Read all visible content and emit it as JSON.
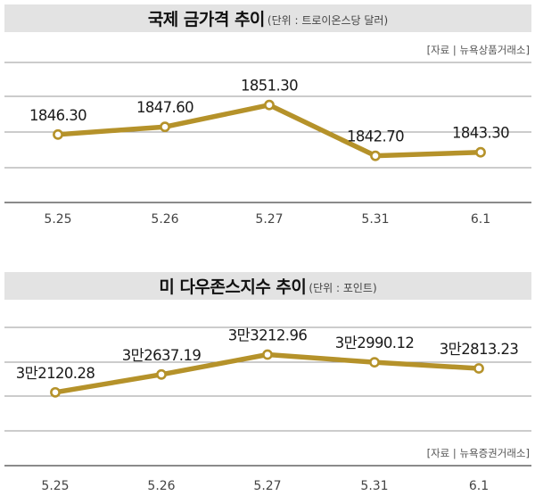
{
  "charts": [
    {
      "title": "국제 금가격 추이",
      "unit": "(단위 : 트로이온스당 달러)",
      "source": "[자료 | 뉴욕상품거래소]"
    },
    {
      "title": "미 다우존스지수 추이",
      "unit": "(단위 : 포인트)",
      "source": "[자료 | 뉴욕증권거래소]"
    }
  ],
  "colors": {
    "line": "#b5922a",
    "grid": "#9a9a9a",
    "axis": "#444444",
    "title_bg": "#e3e3e3"
  },
  "chart_data": [
    {
      "type": "line",
      "title": "국제 금가격 추이",
      "categories": [
        "5.25",
        "5.26",
        "5.27",
        "5.31",
        "6.1"
      ],
      "series": [
        {
          "values": [
            1846.3,
            1847.6,
            1851.3,
            1842.7,
            1843.3
          ],
          "labels": [
            "1846.30",
            "1847.60",
            "1851.30",
            "1842.70",
            "1843.30"
          ]
        }
      ],
      "ylim": [
        1834.8,
        1858.5
      ],
      "grid": true
    },
    {
      "type": "line",
      "title": "미 다우존스지수 추이",
      "categories": [
        "5.25",
        "5.26",
        "5.27",
        "5.31",
        "6.1"
      ],
      "series": [
        {
          "values": [
            32120.28,
            32637.19,
            33212.96,
            32990.12,
            32813.23
          ],
          "labels": [
            "3만2120.28",
            "3만2637.19",
            "3만3212.96",
            "3만2990.12",
            "3만2813.23"
          ]
        }
      ],
      "ylim": [
        30000,
        34000
      ],
      "grid": true
    }
  ]
}
